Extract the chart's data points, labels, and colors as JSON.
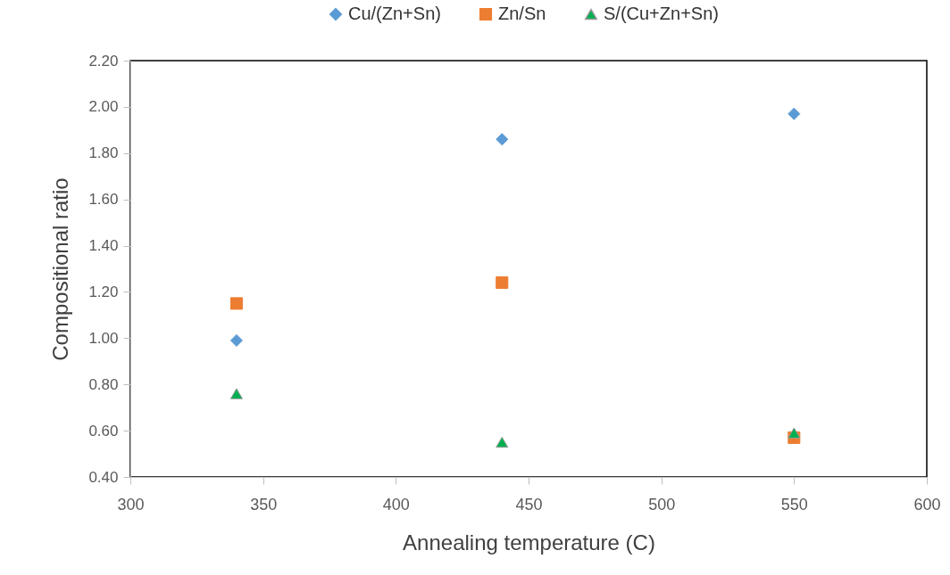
{
  "chart_data": {
    "type": "scatter",
    "xlabel": "Annealing temperature (C)",
    "ylabel": "Compositional ratio",
    "x": [
      340,
      440,
      550
    ],
    "series": [
      {
        "name": "Cu/(Zn+Sn)",
        "color": "#5b9bd5",
        "marker": "diamond",
        "values": [
          0.99,
          1.86,
          1.97
        ]
      },
      {
        "name": "Zn/Sn",
        "color": "#ed7d31",
        "marker": "square",
        "values": [
          1.15,
          1.24,
          0.57
        ]
      },
      {
        "name": "S/(Cu+Zn+Sn)",
        "color": "#00b050",
        "marker": "triangle",
        "values": [
          0.76,
          0.55,
          0.59
        ]
      }
    ],
    "xlim": [
      300,
      600
    ],
    "xticks": [
      300,
      350,
      400,
      450,
      500,
      550,
      600
    ],
    "ylim": [
      0.4,
      2.2
    ],
    "yticks": [
      {
        "value": 0.4,
        "label": "0.40"
      },
      {
        "value": 0.6,
        "label": "0.60"
      },
      {
        "value": 0.8,
        "label": "0.80"
      },
      {
        "value": 1.0,
        "label": "1.00"
      },
      {
        "value": 1.2,
        "label": "1.20"
      },
      {
        "value": 1.4,
        "label": "1.40"
      },
      {
        "value": 1.6,
        "label": "1.60"
      },
      {
        "value": 1.8,
        "label": "1.80"
      },
      {
        "value": 2.0,
        "label": "2.00"
      },
      {
        "value": 2.2,
        "label": "2.20"
      }
    ],
    "grid": false,
    "legend": "top"
  }
}
